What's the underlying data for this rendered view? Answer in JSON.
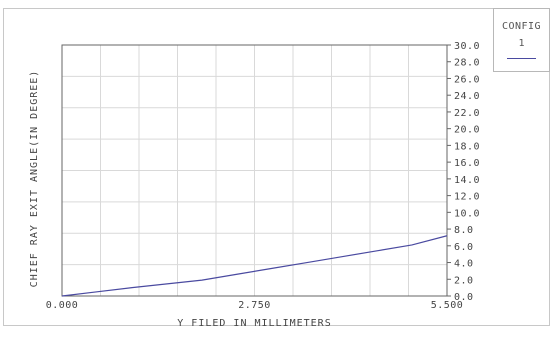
{
  "legend": {
    "title": "CONFIG",
    "value": "1",
    "line_color": "#4a4aa0"
  },
  "chart_data": {
    "type": "line",
    "xlabel": "Y FILED IN MILLIMETERS",
    "ylabel": "CHIEF RAY EXIT ANGLE(IN DEGREE)",
    "xlim": [
      0,
      5.5
    ],
    "ylim": [
      0,
      30
    ],
    "x_tick_labels": [
      "0.000",
      "2.750",
      "5.500"
    ],
    "y_tick_labels": [
      "0.0",
      "2.0",
      "4.0",
      "6.0",
      "8.0",
      "10.0",
      "12.0",
      "14.0",
      "16.0",
      "18.0",
      "20.0",
      "22.0",
      "24.0",
      "26.0",
      "28.0",
      "30.0"
    ],
    "grid": true,
    "series": [
      {
        "color": "#4a4aa0",
        "x": [
          0,
          0.5,
          1.0,
          1.5,
          2.0,
          2.5,
          3.0,
          3.5,
          4.0,
          4.5,
          5.0,
          5.5
        ],
        "y": [
          0,
          0.5,
          1.0,
          1.45,
          1.9,
          2.6,
          3.3,
          4.0,
          4.7,
          5.4,
          6.1,
          7.2
        ]
      }
    ]
  }
}
